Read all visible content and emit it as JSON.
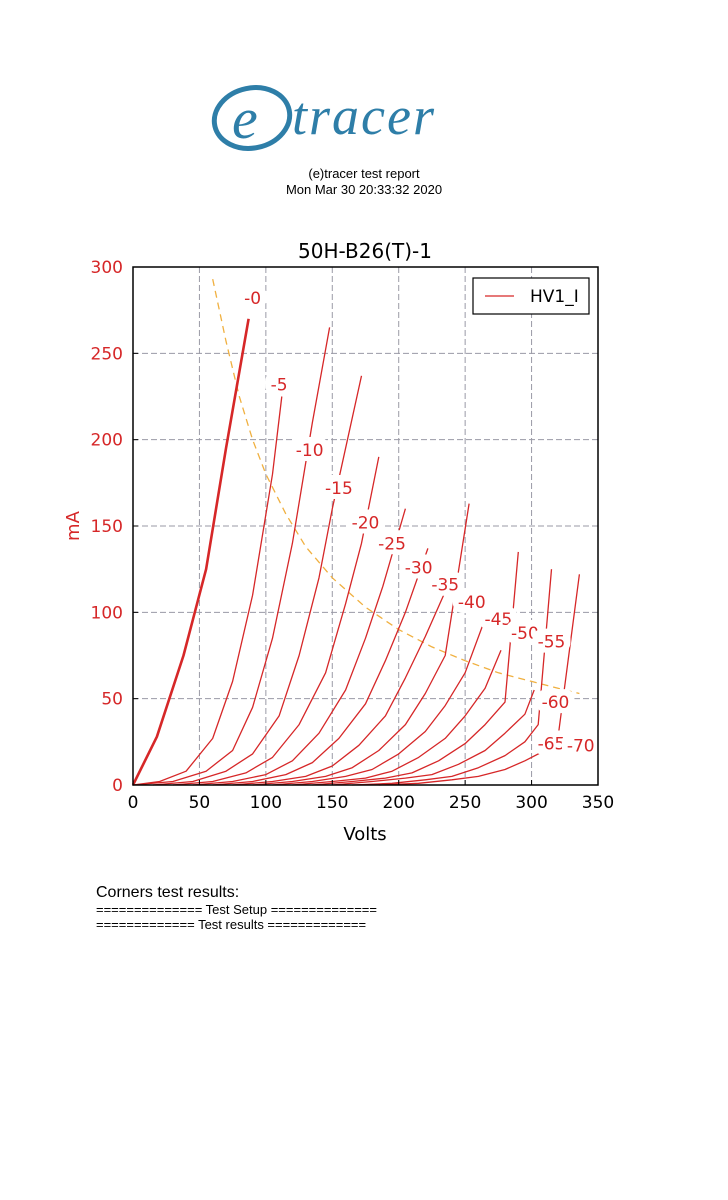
{
  "logo": {
    "text": "(e)tracer",
    "letter": "e",
    "rest": "tracer"
  },
  "report": {
    "title": "(e)tracer test report",
    "date": "Mon Mar 30 20:33:32 2020"
  },
  "results": {
    "heading": "Corners test results:",
    "setup_line": "============== Test Setup ==============",
    "results_line": "============= Test results ============="
  },
  "colors": {
    "logo": "#2e7ea8",
    "curve": "#d62728",
    "guide": "#f0b040"
  },
  "chart_data": {
    "type": "line",
    "title": "50H-B26(T)-1",
    "xlabel": "Volts",
    "ylabel": "mA",
    "xlim": [
      0,
      350
    ],
    "ylim": [
      0,
      300
    ],
    "xticks": [
      0,
      50,
      100,
      150,
      200,
      250,
      300,
      350
    ],
    "yticks": [
      0,
      50,
      100,
      150,
      200,
      250,
      300
    ],
    "grid": true,
    "legend": {
      "position": "top-right",
      "entries": [
        "HV1_I"
      ]
    },
    "series": [
      {
        "grid_voltage": "-0",
        "x": [
          0,
          18,
          38,
          55,
          70,
          87
        ],
        "y": [
          0,
          28,
          75,
          125,
          195,
          270
        ]
      },
      {
        "grid_voltage": "-5",
        "x": [
          0,
          20,
          40,
          60,
          75,
          90,
          105,
          112
        ],
        "y": [
          0,
          2,
          8,
          27,
          60,
          110,
          180,
          225
        ]
      },
      {
        "grid_voltage": "-10",
        "x": [
          0,
          30,
          55,
          75,
          90,
          105,
          120,
          135,
          148
        ],
        "y": [
          0,
          2,
          8,
          20,
          45,
          85,
          140,
          210,
          265
        ]
      },
      {
        "grid_voltage": "-15",
        "x": [
          15,
          45,
          70,
          90,
          110,
          125,
          140,
          150,
          172
        ],
        "y": [
          0,
          2,
          8,
          18,
          40,
          75,
          120,
          160,
          237
        ]
      },
      {
        "grid_voltage": "-20",
        "x": [
          30,
          60,
          85,
          105,
          125,
          145,
          160,
          172,
          185
        ],
        "y": [
          0,
          2,
          7,
          16,
          35,
          65,
          105,
          140,
          190
        ]
      },
      {
        "grid_voltage": "-25",
        "x": [
          45,
          75,
          100,
          120,
          140,
          160,
          175,
          188,
          205
        ],
        "y": [
          0,
          2,
          6,
          14,
          30,
          55,
          85,
          115,
          160
        ]
      },
      {
        "grid_voltage": "-30",
        "x": [
          60,
          90,
          115,
          135,
          155,
          175,
          190,
          205,
          222
        ],
        "y": [
          0,
          2,
          6,
          13,
          27,
          47,
          72,
          100,
          137
        ]
      },
      {
        "grid_voltage": "-35",
        "x": [
          75,
          105,
          130,
          150,
          170,
          190,
          205,
          220,
          235
        ],
        "y": [
          0,
          2,
          5,
          11,
          23,
          40,
          62,
          86,
          112
        ]
      },
      {
        "grid_voltage": "-40",
        "x": [
          90,
          120,
          145,
          165,
          185,
          205,
          220,
          235,
          253
        ],
        "y": [
          0,
          2,
          5,
          10,
          20,
          35,
          53,
          75,
          163
        ]
      },
      {
        "grid_voltage": "-45",
        "x": [
          105,
          135,
          160,
          180,
          200,
          220,
          235,
          250,
          263
        ],
        "y": [
          0,
          2,
          5,
          9,
          18,
          31,
          46,
          65,
          92
        ]
      },
      {
        "grid_voltage": "-50",
        "x": [
          120,
          150,
          175,
          195,
          215,
          235,
          250,
          265,
          277
        ],
        "y": [
          0,
          2,
          4,
          8,
          16,
          27,
          40,
          56,
          78
        ]
      },
      {
        "grid_voltage": "-55",
        "x": [
          135,
          165,
          190,
          210,
          230,
          250,
          265,
          280,
          290
        ],
        "y": [
          0,
          2,
          4,
          7,
          14,
          24,
          35,
          48,
          135
        ]
      },
      {
        "grid_voltage": "-60",
        "x": [
          150,
          180,
          205,
          225,
          245,
          265,
          280,
          295,
          302
        ],
        "y": [
          0,
          2,
          4,
          6,
          12,
          20,
          30,
          41,
          55
        ]
      },
      {
        "grid_voltage": "-65",
        "x": [
          165,
          195,
          220,
          240,
          260,
          280,
          295,
          305,
          315
        ],
        "y": [
          0,
          1,
          3,
          5,
          10,
          17,
          25,
          35,
          125
        ]
      },
      {
        "grid_voltage": "-70",
        "x": [
          185,
          215,
          240,
          260,
          280,
          295,
          310,
          320,
          336
        ],
        "y": [
          0,
          1,
          3,
          5,
          9,
          14,
          20,
          28,
          122
        ]
      }
    ],
    "curve_labels": [
      "-0",
      "-5",
      "-10",
      "-15",
      "-20",
      "-25",
      "-30",
      "-35",
      "-40",
      "-45",
      "-50",
      "-55",
      "-60",
      "-65",
      "-70"
    ],
    "curve_label_points": [
      {
        "x": 90,
        "y": 282
      },
      {
        "x": 110,
        "y": 232
      },
      {
        "x": 133,
        "y": 194
      },
      {
        "x": 155,
        "y": 172
      },
      {
        "x": 175,
        "y": 152
      },
      {
        "x": 195,
        "y": 140
      },
      {
        "x": 215,
        "y": 126
      },
      {
        "x": 235,
        "y": 116
      },
      {
        "x": 255,
        "y": 106
      },
      {
        "x": 275,
        "y": 96
      },
      {
        "x": 295,
        "y": 88
      },
      {
        "x": 315,
        "y": 83
      },
      {
        "x": 318,
        "y": 48
      },
      {
        "x": 315,
        "y": 24
      },
      {
        "x": 337,
        "y": 23
      }
    ],
    "max_dissipation_curve": {
      "x": [
        60,
        70,
        80,
        90,
        100,
        115,
        130,
        150,
        175,
        200,
        225,
        250,
        275,
        300,
        325,
        336
      ],
      "y": [
        293,
        257,
        225,
        200,
        180,
        157,
        138,
        120,
        103,
        90,
        80,
        72,
        65,
        60,
        55,
        53
      ]
    }
  }
}
